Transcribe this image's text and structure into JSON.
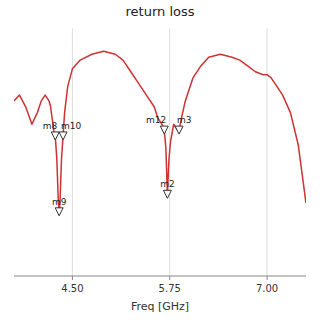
{
  "chart_data": {
    "type": "line",
    "title": "return loss",
    "xlabel": "Freq [GHz]",
    "x": [
      3.75,
      3.82,
      3.9,
      3.98,
      4.05,
      4.1,
      4.15,
      4.2,
      4.22,
      4.24,
      4.26,
      4.28,
      4.3,
      4.32,
      4.33,
      4.34,
      4.36,
      4.38,
      4.4,
      4.44,
      4.5,
      4.6,
      4.75,
      4.9,
      5.05,
      5.15,
      5.25,
      5.35,
      5.45,
      5.55,
      5.6,
      5.65,
      5.68,
      5.7,
      5.72,
      5.74,
      5.76,
      5.8,
      5.85,
      5.87,
      5.9,
      5.95,
      6.05,
      6.15,
      6.25,
      6.4,
      6.55,
      6.65,
      6.75,
      6.85,
      6.95,
      7.0,
      7.05,
      7.1,
      7.2,
      7.3,
      7.4,
      7.5
    ],
    "values": [
      -20,
      -18,
      -22,
      -28,
      -24,
      -20,
      -18,
      -20,
      -22,
      -26,
      -30,
      -32,
      -40,
      -55,
      -58,
      -55,
      -40,
      -32,
      -24,
      -15,
      -9,
      -6,
      -4,
      -3,
      -4,
      -6,
      -10,
      -14,
      -18,
      -22,
      -26,
      -28,
      -30,
      -36,
      -52,
      -40,
      -34,
      -28,
      -30,
      -30,
      -26,
      -20,
      -12,
      -8,
      -5,
      -4,
      -5,
      -6,
      -8,
      -10,
      -11,
      -11,
      -12,
      -14,
      -18,
      -24,
      -35,
      -55
    ],
    "color": "#cc3333",
    "xlim": [
      3.75,
      7.5
    ],
    "ylim": [
      -80,
      5
    ],
    "xticks": [
      {
        "value": 4.5,
        "label": "4.50"
      },
      5.75,
      {
        "value": 7.0,
        "label": "7.00"
      }
    ],
    "grid": true,
    "tick_labels": "x",
    "annotations": [
      {
        "text": "m8",
        "x": 4.28,
        "y": -32
      },
      {
        "text": "m10",
        "x": 4.38,
        "y": -32
      },
      {
        "text": "m9",
        "x": 4.33,
        "y": -58
      },
      {
        "text": "m2",
        "x": 5.72,
        "y": -52
      },
      {
        "text": "m12",
        "x": 5.68,
        "y": -30
      },
      {
        "text": "m3",
        "x": 5.87,
        "y": -30
      }
    ]
  }
}
